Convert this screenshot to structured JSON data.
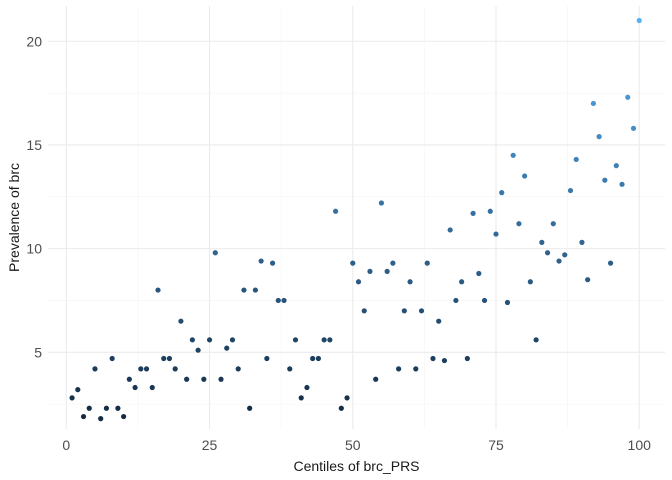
{
  "chart_data": {
    "type": "scatter",
    "title": "",
    "xlabel": "Centiles of brc_PRS",
    "ylabel": "Prevalence of brc",
    "xlim": [
      -3.2,
      104.5
    ],
    "ylim": [
      1.3,
      21.7
    ],
    "xticks": [
      0,
      25,
      50,
      75,
      100
    ],
    "xtick_labels": [
      "0",
      "25",
      "50",
      "75",
      "100"
    ],
    "yticks": [
      5,
      10,
      15,
      20
    ],
    "ytick_labels": [
      "5",
      "10",
      "15",
      "20"
    ],
    "grid": true,
    "legend": "none",
    "color_scale": {
      "low": "#132b43",
      "high": "#56b1f7",
      "mapped_to": "y"
    },
    "x": [
      1,
      2,
      3,
      4,
      5,
      6,
      7,
      8,
      9,
      10,
      11,
      12,
      13,
      14,
      15,
      16,
      17,
      18,
      19,
      20,
      21,
      22,
      23,
      24,
      25,
      26,
      27,
      28,
      29,
      30,
      31,
      32,
      33,
      34,
      35,
      36,
      37,
      38,
      39,
      40,
      41,
      42,
      43,
      44,
      45,
      46,
      47,
      48,
      49,
      50,
      51,
      52,
      53,
      54,
      55,
      56,
      57,
      58,
      59,
      60,
      61,
      62,
      63,
      64,
      65,
      66,
      67,
      68,
      69,
      70,
      71,
      72,
      73,
      74,
      75,
      76,
      77,
      78,
      79,
      80,
      81,
      82,
      83,
      84,
      85,
      86,
      87,
      88,
      89,
      90,
      91,
      92,
      93,
      94,
      95,
      96,
      97,
      98,
      99,
      100
    ],
    "y": [
      2.8,
      3.2,
      1.9,
      2.3,
      4.2,
      1.8,
      2.3,
      4.7,
      2.3,
      1.9,
      3.7,
      3.3,
      4.2,
      4.2,
      3.3,
      8.0,
      4.7,
      4.7,
      4.2,
      6.5,
      3.7,
      5.6,
      5.1,
      3.7,
      5.6,
      9.8,
      3.7,
      5.2,
      5.6,
      4.2,
      8.0,
      2.3,
      8.0,
      9.4,
      4.7,
      9.3,
      7.5,
      7.5,
      4.2,
      5.6,
      2.8,
      3.3,
      4.7,
      4.7,
      5.6,
      5.6,
      11.8,
      2.3,
      2.8,
      9.3,
      8.4,
      7.0,
      8.9,
      3.7,
      12.2,
      8.9,
      9.3,
      4.2,
      7.0,
      8.4,
      4.2,
      7.0,
      9.3,
      4.7,
      6.5,
      4.6,
      10.9,
      7.5,
      8.4,
      4.7,
      11.7,
      8.8,
      7.5,
      11.8,
      10.7,
      12.7,
      7.4,
      14.5,
      11.2,
      13.5,
      8.4,
      5.6,
      10.3,
      9.8,
      11.2,
      9.4,
      9.7,
      12.8,
      14.3,
      10.3,
      8.5,
      17.0,
      15.4,
      13.3,
      9.3,
      14.0,
      13.1,
      17.3,
      15.8,
      21.0
    ]
  }
}
